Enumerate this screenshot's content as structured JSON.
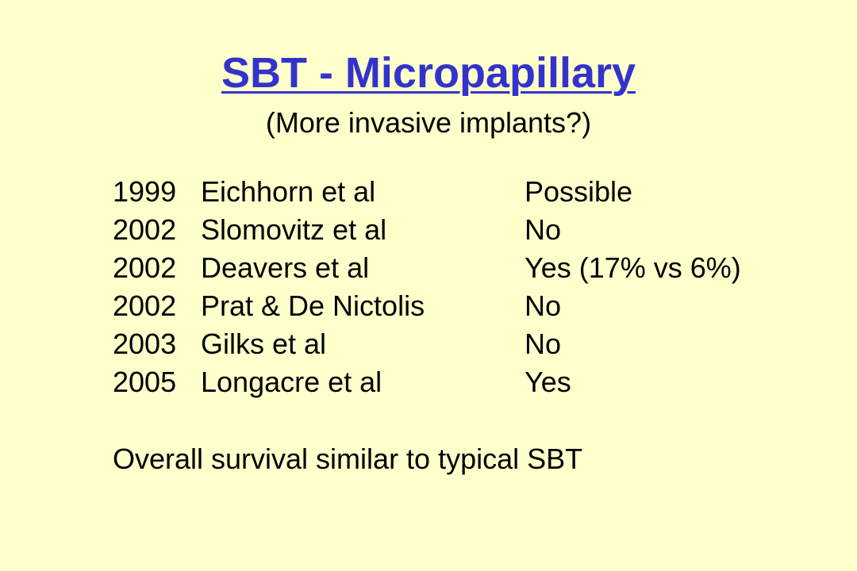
{
  "slide": {
    "title": "SBT - Micropapillary",
    "subtitle": "(More invasive implants?)",
    "rows": [
      {
        "year": "1999",
        "author": "Eichhorn et al",
        "result": "Possible"
      },
      {
        "year": "2002",
        "author": "Slomovitz et al",
        "result": "No"
      },
      {
        "year": "2002",
        "author": "Deavers et al",
        "result": "Yes (17% vs 6%)"
      },
      {
        "year": "2002",
        "author": "Prat & De Nictolis",
        "result": "No"
      },
      {
        "year": "2003",
        "author": "Gilks et al",
        "result": "No"
      },
      {
        "year": "2005",
        "author": "Longacre et al",
        "result": "Yes"
      }
    ],
    "conclusion": "Overall survival similar to typical SBT"
  },
  "colors": {
    "background": "#ffffcc",
    "title": "#3333cc",
    "text": "#000000"
  }
}
